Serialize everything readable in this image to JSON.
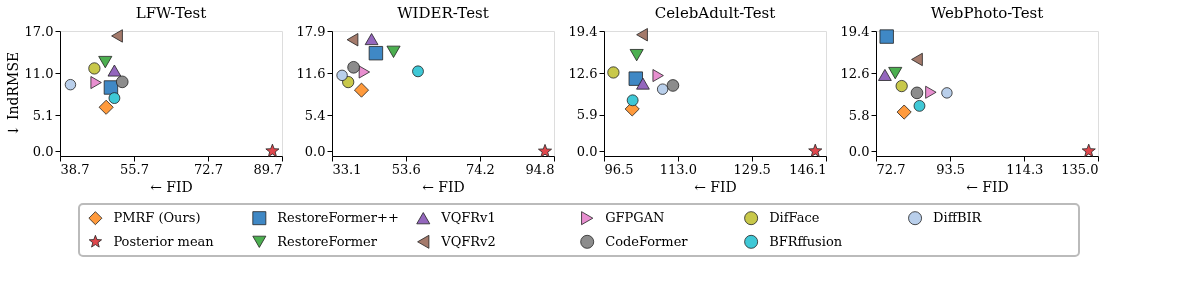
{
  "chart_data": [
    {
      "type": "scatter",
      "title": "LFW-Test",
      "xlabel": "← FID",
      "ylabel": "↓ IndRMSE",
      "legend": "bottom",
      "xlim": [
        38.7,
        89.7
      ],
      "ylim": [
        -0.7,
        17.0
      ],
      "xticks": [
        38.7,
        55.7,
        72.7,
        89.7
      ],
      "yticks": [
        {
          "value": 0,
          "label": "0.0"
        },
        5.1,
        {
          "value": 11,
          "label": "11.0"
        },
        {
          "value": 17,
          "label": "17.0"
        }
      ],
      "series": [
        {
          "name": "PMRF (Ours)",
          "color": "#ff9a3c",
          "marker": "diamond",
          "x": [
            49.3
          ],
          "values": [
            6.2
          ]
        },
        {
          "name": "Posterior mean",
          "color": "#e0474c",
          "marker": "star",
          "x": [
            87.5
          ],
          "values": [
            0.0
          ]
        },
        {
          "name": "RestoreFormer++",
          "color": "#3f88c5",
          "marker": "square",
          "x": [
            50.4
          ],
          "values": [
            9.0
          ]
        },
        {
          "name": "RestoreFormer",
          "color": "#4caf50",
          "marker": "triangle-down",
          "x": [
            49.1
          ],
          "values": [
            12.6
          ]
        },
        {
          "name": "VQFRv1",
          "color": "#9467bd",
          "marker": "triangle-up",
          "x": [
            51.2
          ],
          "values": [
            11.4
          ]
        },
        {
          "name": "VQFRv2",
          "color": "#a47a6b",
          "marker": "triangle-left",
          "x": [
            51.8
          ],
          "values": [
            16.3
          ]
        },
        {
          "name": "GFPGAN",
          "color": "#e88fd0",
          "marker": "triangle-right",
          "x": [
            47.0
          ],
          "values": [
            9.7
          ]
        },
        {
          "name": "CodeFormer",
          "color": "#8c8c8c",
          "x": [
            53.0
          ],
          "values": [
            9.8
          ]
        },
        {
          "name": "DifFace",
          "color": "#c8c84a",
          "x": [
            46.6
          ],
          "values": [
            11.7
          ]
        },
        {
          "name": "BFRffusion",
          "color": "#3fc8d6",
          "x": [
            51.2
          ],
          "values": [
            7.5
          ]
        },
        {
          "name": "DiffBIR",
          "color": "#b9cfeb",
          "marker": "circle",
          "x": [
            41.1
          ],
          "values": [
            9.4
          ]
        }
      ]
    },
    {
      "type": "scatter",
      "title": "WIDER-Test",
      "xlabel": "← FID",
      "xlim": [
        33.1,
        94.8
      ],
      "ylim": [
        -0.7,
        17.9
      ],
      "xticks": [
        33.1,
        53.6,
        74.2,
        94.8
      ],
      "yticks": [
        {
          "value": 0,
          "label": "0.0"
        },
        5.4,
        11.6,
        17.9
      ],
      "series": [
        {
          "color": "#ff9a3c",
          "marker": "diamond",
          "x": [
            41.3
          ],
          "values": [
            9.1
          ]
        },
        {
          "color": "#e0474c",
          "marker": "star",
          "x": [
            92.3
          ],
          "values": [
            0.0
          ]
        },
        {
          "color": "#3f88c5",
          "marker": "square",
          "x": [
            45.3
          ],
          "values": [
            14.6
          ]
        },
        {
          "color": "#4caf50",
          "marker": "triangle-down",
          "x": [
            50.2
          ],
          "values": [
            14.8
          ]
        },
        {
          "color": "#9467bd",
          "marker": "triangle-up",
          "x": [
            44.1
          ],
          "values": [
            16.7
          ]
        },
        {
          "color": "#a47a6b",
          "marker": "triangle-left",
          "x": [
            38.8
          ],
          "values": [
            16.6
          ]
        },
        {
          "color": "#e88fd0",
          "marker": "triangle-right",
          "x": [
            42.1
          ],
          "values": [
            11.8
          ]
        },
        {
          "color": "#8c8c8c",
          "x": [
            39.1
          ],
          "values": [
            12.5
          ]
        },
        {
          "color": "#c8c84a",
          "x": [
            37.6
          ],
          "values": [
            10.3
          ]
        },
        {
          "color": "#3fc8d6",
          "x": [
            57.0
          ],
          "values": [
            11.9
          ]
        },
        {
          "color": "#b9cfeb",
          "marker": "circle",
          "x": [
            35.9
          ],
          "values": [
            11.3
          ]
        }
      ]
    },
    {
      "type": "scatter",
      "title": "CelebAdult-Test",
      "xlabel": "← FID",
      "xlim": [
        96.5,
        146.1
      ],
      "ylim": [
        -0.8,
        19.4
      ],
      "xticks": [
        96.5,
        {
          "value": 113,
          "label": "113.0"
        },
        129.5,
        146.1
      ],
      "yticks": [
        {
          "value": 0,
          "label": "0.0"
        },
        5.9,
        12.6,
        19.4
      ],
      "series": [
        {
          "color": "#ff9a3c",
          "marker": "diamond",
          "x": [
            102.8
          ],
          "values": [
            6.8
          ]
        },
        {
          "color": "#e0474c",
          "marker": "star",
          "x": [
            143.7
          ],
          "values": [
            0.0
          ]
        },
        {
          "color": "#3f88c5",
          "marker": "square",
          "x": [
            103.6
          ],
          "values": [
            11.7
          ]
        },
        {
          "color": "#4caf50",
          "marker": "triangle-down",
          "x": [
            103.8
          ],
          "values": [
            15.5
          ]
        },
        {
          "color": "#9467bd",
          "marker": "triangle-up",
          "x": [
            105.2
          ],
          "values": [
            10.9
          ]
        },
        {
          "color": "#a47a6b",
          "marker": "triangle-left",
          "x": [
            105.0
          ],
          "values": [
            18.8
          ]
        },
        {
          "color": "#e88fd0",
          "marker": "triangle-right",
          "x": [
            108.6
          ],
          "values": [
            12.2
          ]
        },
        {
          "color": "#8c8c8c",
          "x": [
            111.9
          ],
          "values": [
            10.6
          ]
        },
        {
          "color": "#c8c84a",
          "x": [
            98.6
          ],
          "values": [
            12.7
          ]
        },
        {
          "color": "#3fc8d6",
          "x": [
            102.9
          ],
          "values": [
            8.2
          ]
        },
        {
          "color": "#b9cfeb",
          "marker": "circle",
          "x": [
            109.6
          ],
          "values": [
            10.0
          ]
        }
      ]
    },
    {
      "type": "scatter",
      "title": "WebPhoto-Test",
      "xlabel": "← FID",
      "xlim": [
        72.7,
        135.0
      ],
      "ylim": [
        -0.8,
        19.4
      ],
      "xticks": [
        72.7,
        93.5,
        114.3,
        {
          "value": 135,
          "label": "135.0"
        }
      ],
      "yticks": [
        {
          "value": 0,
          "label": "0.0"
        },
        5.8,
        12.6,
        19.4
      ],
      "series": [
        {
          "color": "#ff9a3c",
          "marker": "diamond",
          "x": [
            80.6
          ],
          "values": [
            6.3
          ]
        },
        {
          "color": "#e0474c",
          "marker": "star",
          "x": [
            132.4
          ],
          "values": [
            0.0
          ]
        },
        {
          "color": "#3f88c5",
          "marker": "square",
          "x": [
            75.7
          ],
          "values": [
            18.5
          ]
        },
        {
          "color": "#4caf50",
          "marker": "triangle-down",
          "x": [
            78.1
          ],
          "values": [
            12.6
          ]
        },
        {
          "color": "#9467bd",
          "marker": "triangle-up",
          "x": [
            75.2
          ],
          "values": [
            12.3
          ]
        },
        {
          "color": "#a47a6b",
          "marker": "triangle-left",
          "x": [
            84.2
          ],
          "values": [
            14.8
          ]
        },
        {
          "color": "#e88fd0",
          "marker": "triangle-right",
          "x": [
            88.1
          ],
          "values": [
            9.5
          ]
        },
        {
          "color": "#8c8c8c",
          "x": [
            84.2
          ],
          "values": [
            9.4
          ]
        },
        {
          "color": "#c8c84a",
          "x": [
            79.9
          ],
          "values": [
            10.5
          ]
        },
        {
          "color": "#3fc8d6",
          "x": [
            84.9
          ],
          "values": [
            7.3
          ]
        },
        {
          "color": "#b9cfeb",
          "marker": "circle",
          "x": [
            92.6
          ],
          "values": [
            9.4
          ]
        }
      ]
    }
  ]
}
